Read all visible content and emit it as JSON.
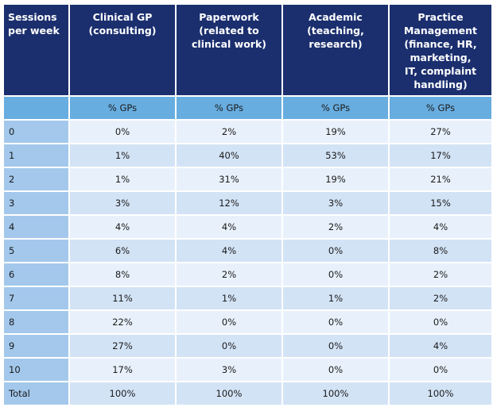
{
  "colors": {
    "header_bg": "#1b2f6f",
    "subheader_bg": "#68ade0",
    "row_header_bg": "#a3c8ec",
    "row_light": "#e8f1fb",
    "row_dark": "#d3e3f6"
  },
  "table": {
    "headers": [
      "Sessions\nper week",
      "Clinical GP\n(consulting)",
      "Paperwork\n(related to\nclinical work)",
      "Academic\n(teaching,\nresearch)",
      "Practice\nManagement\n(finance, HR,\nmarketing,\nIT, complaint\nhandling)"
    ],
    "subheaders": [
      "",
      "% GPs",
      "% GPs",
      "% GPs",
      "% GPs"
    ],
    "rows": [
      [
        "0",
        "0%",
        "2%",
        "19%",
        "27%"
      ],
      [
        "1",
        "1%",
        "40%",
        "53%",
        "17%"
      ],
      [
        "2",
        "1%",
        "31%",
        "19%",
        "21%"
      ],
      [
        "3",
        "3%",
        "12%",
        "3%",
        "15%"
      ],
      [
        "4",
        "4%",
        "4%",
        "2%",
        "4%"
      ],
      [
        "5",
        "6%",
        "4%",
        "0%",
        "8%"
      ],
      [
        "6",
        "8%",
        "2%",
        "0%",
        "2%"
      ],
      [
        "7",
        "11%",
        "1%",
        "1%",
        "2%"
      ],
      [
        "8",
        "22%",
        "0%",
        "0%",
        "0%"
      ],
      [
        "9",
        "27%",
        "0%",
        "0%",
        "4%"
      ],
      [
        "10",
        "17%",
        "3%",
        "0%",
        "0%"
      ],
      [
        "Total",
        "100%",
        "100%",
        "100%",
        "100%"
      ]
    ]
  }
}
